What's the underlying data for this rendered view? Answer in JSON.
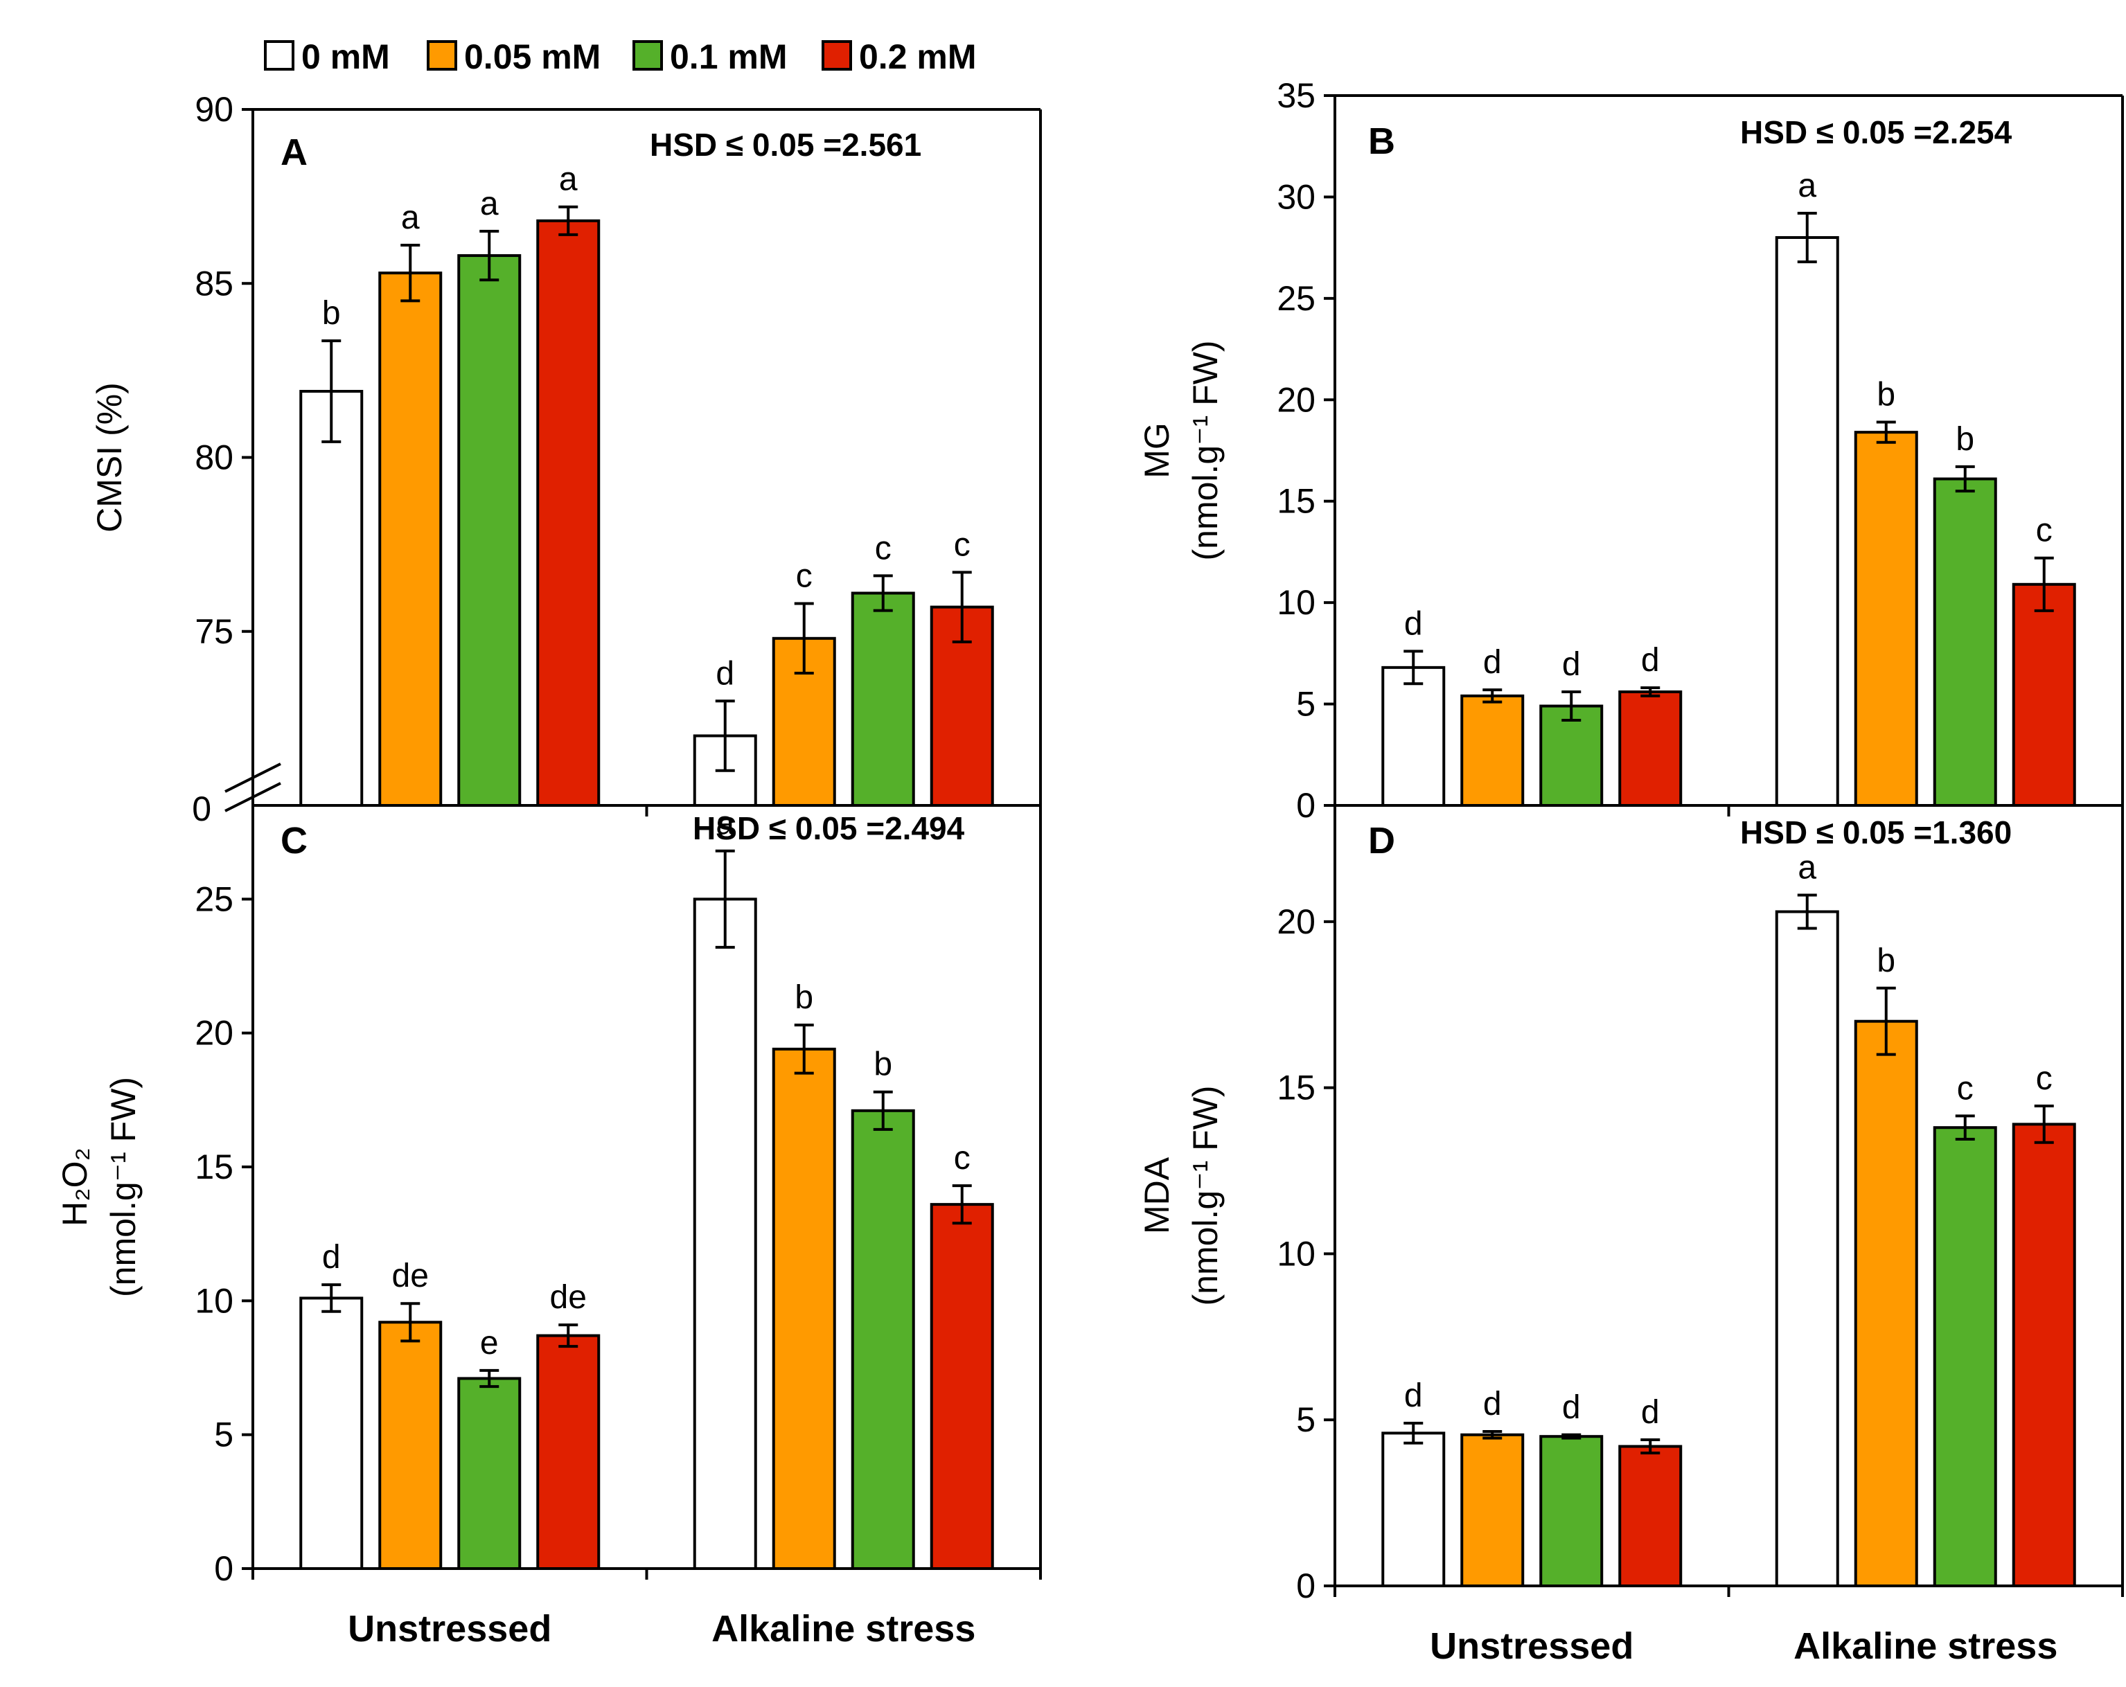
{
  "legend": {
    "entries": [
      {
        "label": "0 mM",
        "color": "#ffffff"
      },
      {
        "label": "0.05 mM",
        "color": "#ff9a00"
      },
      {
        "label": "0.1 mM",
        "color": "#55b02a"
      },
      {
        "label": "0.2 mM",
        "color": "#e02000"
      }
    ]
  },
  "colors": {
    "series": [
      "#ffffff",
      "#ff9a00",
      "#55b02a",
      "#e02000"
    ],
    "stroke": "#000000"
  },
  "categories": [
    "Unstressed",
    "Alkaline stress"
  ],
  "chart_data": [
    {
      "type": "bar",
      "panel": "A",
      "hsd": "HSD ≤ 0.05 =2.561",
      "ylabel": "CMSI (%)",
      "ylabel_sub": "",
      "ylim": [
        70,
        90
      ],
      "axis_break": true,
      "break_label": "0",
      "yticks": [
        75,
        80,
        85,
        90
      ],
      "categories": [
        "Unstressed",
        "Alkaline stress"
      ],
      "series": [
        {
          "name": "0 mM",
          "values": [
            81.9,
            72.0
          ],
          "errors": [
            1.45,
            1.0
          ],
          "letters": [
            "b",
            "d"
          ]
        },
        {
          "name": "0.05 mM",
          "values": [
            85.3,
            74.8
          ],
          "errors": [
            0.8,
            1.0
          ],
          "letters": [
            "a",
            "c"
          ]
        },
        {
          "name": "0.1 mM",
          "values": [
            85.8,
            76.1
          ],
          "errors": [
            0.7,
            0.5
          ],
          "letters": [
            "a",
            "c"
          ]
        },
        {
          "name": "0.2 mM",
          "values": [
            86.8,
            75.7
          ],
          "errors": [
            0.4,
            1.0
          ],
          "letters": [
            "a",
            "c"
          ]
        }
      ]
    },
    {
      "type": "bar",
      "panel": "B",
      "hsd": "HSD ≤ 0.05 =2.254",
      "ylabel": "MG",
      "ylabel_sub": "(nmol.g⁻¹ FW)",
      "ylim": [
        0,
        35
      ],
      "axis_break": false,
      "yticks": [
        0,
        5,
        10,
        15,
        20,
        25,
        30,
        35
      ],
      "categories": [
        "Unstressed",
        "Alkaline stress"
      ],
      "series": [
        {
          "name": "0 mM",
          "values": [
            6.8,
            28.0
          ],
          "errors": [
            0.8,
            1.2
          ],
          "letters": [
            "d",
            "a"
          ]
        },
        {
          "name": "0.05 mM",
          "values": [
            5.4,
            18.4
          ],
          "errors": [
            0.3,
            0.5
          ],
          "letters": [
            "d",
            "b"
          ]
        },
        {
          "name": "0.1 mM",
          "values": [
            4.9,
            16.1
          ],
          "errors": [
            0.7,
            0.6
          ],
          "letters": [
            "d",
            "b"
          ]
        },
        {
          "name": "0.2 mM",
          "values": [
            5.6,
            10.9
          ],
          "errors": [
            0.2,
            1.3
          ],
          "letters": [
            "d",
            "c"
          ]
        }
      ]
    },
    {
      "type": "bar",
      "panel": "C",
      "hsd": "HSD ≤ 0.05 =2.494",
      "ylabel": "H₂O₂",
      "ylabel_sub": "(nmol.g⁻¹ FW)",
      "ylim": [
        0,
        28.5
      ],
      "axis_break": false,
      "yticks": [
        0,
        5,
        10,
        15,
        20,
        25
      ],
      "categories": [
        "Unstressed",
        "Alkaline stress"
      ],
      "series": [
        {
          "name": "0 mM",
          "values": [
            10.1,
            25.0
          ],
          "errors": [
            0.5,
            1.8
          ],
          "letters": [
            "d",
            "a"
          ]
        },
        {
          "name": "0.05 mM",
          "values": [
            9.2,
            19.4
          ],
          "errors": [
            0.7,
            0.9
          ],
          "letters": [
            "de",
            "b"
          ]
        },
        {
          "name": "0.1 mM",
          "values": [
            7.1,
            17.1
          ],
          "errors": [
            0.3,
            0.7
          ],
          "letters": [
            "e",
            "b"
          ]
        },
        {
          "name": "0.2 mM",
          "values": [
            8.7,
            13.6
          ],
          "errors": [
            0.4,
            0.7
          ],
          "letters": [
            "de",
            "c"
          ]
        }
      ]
    },
    {
      "type": "bar",
      "panel": "D",
      "hsd": "HSD ≤ 0.05 =1.360",
      "ylabel": "MDA",
      "ylabel_sub": "(nmol.g⁻¹ FW)",
      "ylim": [
        0,
        23.5
      ],
      "axis_break": false,
      "yticks": [
        0,
        5,
        10,
        15,
        20
      ],
      "categories": [
        "Unstressed",
        "Alkaline stress"
      ],
      "series": [
        {
          "name": "0 mM",
          "values": [
            4.6,
            20.3
          ],
          "errors": [
            0.3,
            0.5
          ],
          "letters": [
            "d",
            "a"
          ]
        },
        {
          "name": "0.05 mM",
          "values": [
            4.55,
            17.0
          ],
          "errors": [
            0.1,
            1.0
          ],
          "letters": [
            "d",
            "b"
          ]
        },
        {
          "name": "0.1 mM",
          "values": [
            4.5,
            13.8
          ],
          "errors": [
            0.05,
            0.35
          ],
          "letters": [
            "d",
            "c"
          ]
        },
        {
          "name": "0.2 mM",
          "values": [
            4.2,
            13.9
          ],
          "errors": [
            0.2,
            0.55
          ],
          "letters": [
            "d",
            "c"
          ]
        }
      ]
    }
  ]
}
